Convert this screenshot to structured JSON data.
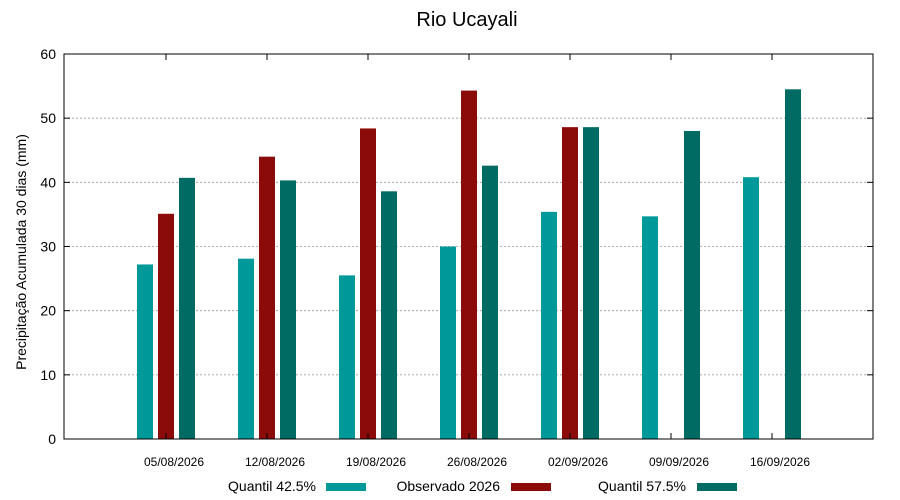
{
  "chart_data": {
    "type": "bar",
    "title": "Rio Ucayali",
    "xlabel": "",
    "ylabel": "Precipitação Acumulada 30 dias (mm)",
    "ylim": [
      0,
      60
    ],
    "yticks": [
      0,
      10,
      20,
      30,
      40,
      50,
      60
    ],
    "grid": true,
    "legend_position": "bottom",
    "categories": [
      "05/08/2026",
      "12/08/2026",
      "19/08/2026",
      "26/08/2026",
      "02/09/2026",
      "09/09/2026",
      "16/09/2026"
    ],
    "series": [
      {
        "name": "Quantil 42.5%",
        "color": "#009999",
        "values": [
          27.2,
          28.1,
          25.5,
          30.0,
          35.4,
          34.7,
          40.8
        ]
      },
      {
        "name": "Observado 2026",
        "color": "#8b0b0b",
        "values": [
          35.1,
          44.0,
          48.4,
          54.3,
          48.6,
          null,
          null
        ]
      },
      {
        "name": "Quantil 57.5%",
        "color": "#006b63",
        "values": [
          40.7,
          40.3,
          38.6,
          42.6,
          48.6,
          48.0,
          54.5
        ]
      }
    ]
  }
}
